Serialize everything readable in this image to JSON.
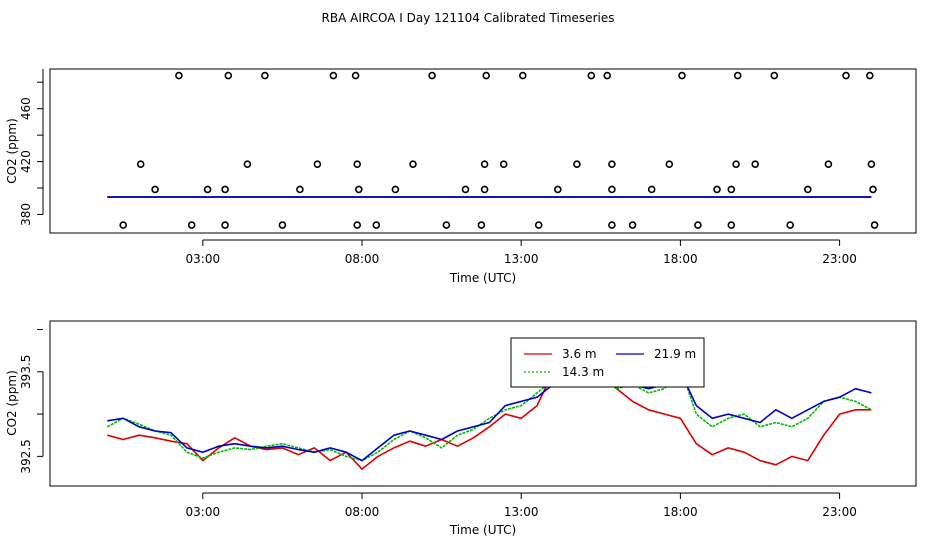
{
  "title": "RBA AIRCOA I  Day 121104  Calibrated Timeseries",
  "colors": {
    "red": "#dd0000",
    "green": "#00bb00",
    "blue": "#0000cc",
    "black": "#000000"
  },
  "chart_data": [
    {
      "type": "scatter",
      "title": "",
      "xlabel": "Time (UTC)",
      "ylabel": "CO2 (ppm)",
      "xlim": [
        -1.8,
        25.4
      ],
      "ylim": [
        366,
        490
      ],
      "xticks": [
        3,
        8,
        13,
        18,
        23
      ],
      "xtick_labels": [
        "03:00",
        "08:00",
        "13:00",
        "18:00",
        "23:00"
      ],
      "yticks": [
        380,
        420,
        460
      ],
      "ytick_labels": [
        "380",
        "420",
        "460"
      ],
      "points": {
        "x": [
          0.5,
          2.65,
          3.7,
          5.5,
          7.85,
          8.45,
          10.65,
          11.75,
          13.55,
          15.85,
          16.5,
          18.55,
          19.6,
          21.45,
          24.1,
          1.5,
          3.15,
          3.7,
          6.05,
          7.9,
          9.05,
          11.25,
          11.85,
          14.15,
          15.85,
          17.1,
          19.15,
          19.6,
          22.0,
          24.05,
          1.05,
          4.4,
          6.6,
          7.85,
          9.6,
          11.85,
          12.45,
          14.75,
          15.85,
          17.65,
          19.75,
          20.35,
          22.65,
          24.0,
          2.25,
          3.8,
          4.95,
          7.1,
          7.8,
          10.2,
          11.9,
          13.05,
          15.2,
          15.7,
          18.05,
          19.8,
          20.95,
          23.2,
          23.95
        ],
        "y": [
          372,
          372,
          372,
          372,
          372,
          372,
          372,
          372,
          372,
          372,
          372,
          372,
          372,
          372,
          372,
          399,
          399,
          399,
          399,
          399,
          399,
          399,
          399,
          399,
          399,
          399,
          399,
          399,
          399,
          399,
          418,
          418,
          418,
          418,
          418,
          418,
          418,
          418,
          418,
          418,
          418,
          418,
          418,
          418,
          485,
          485,
          485,
          485,
          485,
          485,
          485,
          485,
          485,
          485,
          485,
          485,
          485,
          485,
          485
        ]
      },
      "series": [
        {
          "name": "3.6 m",
          "color": "red",
          "x": [
            0,
            24
          ],
          "y": [
            393.1,
            393.1
          ]
        },
        {
          "name": "14.3 m",
          "color": "green",
          "x": [
            0,
            24
          ],
          "y": [
            393.2,
            393.2
          ]
        },
        {
          "name": "21.9 m",
          "color": "blue",
          "x": [
            0,
            24
          ],
          "y": [
            393.3,
            393.3
          ]
        }
      ]
    },
    {
      "type": "line",
      "title": "",
      "xlabel": "Time (UTC)",
      "ylabel": "CO2 (ppm)",
      "xlim": [
        -1.8,
        25.4
      ],
      "ylim": [
        392.15,
        394.1
      ],
      "xticks": [
        3,
        8,
        13,
        18,
        23
      ],
      "xtick_labels": [
        "03:00",
        "08:00",
        "13:00",
        "18:00",
        "23:00"
      ],
      "yticks": [
        392.5,
        393.5
      ],
      "ytick_labels": [
        "392.5",
        "393.5"
      ],
      "legend": {
        "position": "top-center",
        "labels": [
          "3.6 m",
          "21.9 m",
          "14.3 m"
        ]
      },
      "x": [
        0.0,
        0.5,
        1.0,
        1.5,
        2.0,
        2.5,
        3.0,
        3.5,
        4.0,
        4.5,
        5.0,
        5.5,
        6.0,
        6.5,
        7.0,
        7.5,
        8.0,
        8.5,
        9.0,
        9.5,
        10.0,
        10.5,
        11.0,
        11.5,
        12.0,
        12.5,
        13.0,
        13.5,
        14.0,
        14.5,
        15.0,
        15.5,
        16.0,
        16.5,
        17.0,
        17.5,
        18.0,
        18.5,
        19.0,
        19.5,
        20.0,
        20.5,
        21.0,
        21.5,
        22.0,
        22.5,
        23.0,
        23.5,
        24.0
      ],
      "series": [
        {
          "name": "3.6 m",
          "color": "red",
          "values": [
            392.75,
            392.7,
            392.75,
            392.72,
            392.68,
            392.65,
            392.45,
            392.6,
            392.72,
            392.62,
            392.58,
            392.6,
            392.52,
            392.6,
            392.45,
            392.55,
            392.35,
            392.5,
            392.6,
            392.68,
            392.62,
            392.7,
            392.62,
            392.72,
            392.85,
            393.0,
            392.95,
            393.1,
            393.5,
            393.4,
            393.6,
            393.45,
            393.3,
            393.15,
            393.05,
            393.0,
            392.95,
            392.65,
            392.52,
            392.6,
            392.55,
            392.45,
            392.4,
            392.5,
            392.45,
            392.75,
            393.0,
            393.05,
            393.05
          ]
        },
        {
          "name": "14.3 m",
          "color": "green",
          "values": [
            392.85,
            392.95,
            392.88,
            392.8,
            392.75,
            392.55,
            392.48,
            392.55,
            392.6,
            392.58,
            392.62,
            392.65,
            392.6,
            392.55,
            392.58,
            392.5,
            392.45,
            392.55,
            392.7,
            392.8,
            392.72,
            392.6,
            392.75,
            392.82,
            392.95,
            393.05,
            393.1,
            393.25,
            393.4,
            393.35,
            393.55,
            393.45,
            393.3,
            393.35,
            393.25,
            393.3,
            393.55,
            393.0,
            392.85,
            392.95,
            393.0,
            392.85,
            392.9,
            392.85,
            392.95,
            393.15,
            393.2,
            393.15,
            393.05
          ]
        },
        {
          "name": "21.9 m",
          "color": "blue",
          "values": [
            392.92,
            392.95,
            392.85,
            392.8,
            392.78,
            392.6,
            392.55,
            392.62,
            392.65,
            392.62,
            392.6,
            392.62,
            392.58,
            392.55,
            392.6,
            392.55,
            392.45,
            392.6,
            392.75,
            392.8,
            392.75,
            392.7,
            392.8,
            392.85,
            392.9,
            393.1,
            393.15,
            393.2,
            393.35,
            393.45,
            393.5,
            393.45,
            393.4,
            393.35,
            393.3,
            393.35,
            393.5,
            393.1,
            392.95,
            393.0,
            392.95,
            392.9,
            393.05,
            392.95,
            393.05,
            393.15,
            393.2,
            393.3,
            393.25
          ]
        }
      ]
    }
  ]
}
